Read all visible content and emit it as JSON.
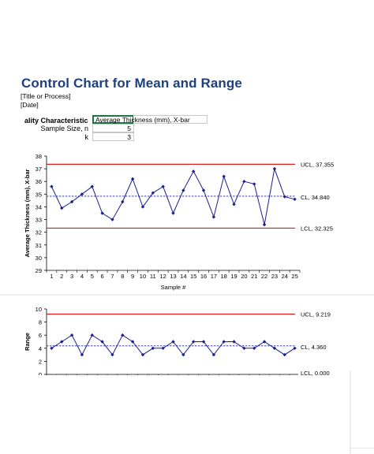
{
  "header": {
    "title": "Control Chart for Mean and Range",
    "line1": "[Title or Process]",
    "line2": "[Date]"
  },
  "form": {
    "quality_label": "ality Characteristic",
    "quality_value": "Average Thickness (mm), X-bar",
    "sample_size_label": "Sample Size, n",
    "sample_size_value": "5",
    "k_label": "k",
    "k_value": "3"
  },
  "colors": {
    "series": "#1a1f8c",
    "control_limit": "#e01b1b",
    "center_line": "#1a1fcc"
  },
  "chart_data": [
    {
      "type": "line",
      "ylabel": "Average Thickness (mm), X-bar",
      "xlabel": "Sample #",
      "ylim": [
        29,
        38
      ],
      "yticks": [
        29,
        30,
        31,
        32,
        33,
        34,
        35,
        36,
        37,
        38
      ],
      "x": [
        1,
        2,
        3,
        4,
        5,
        6,
        7,
        8,
        9,
        10,
        11,
        12,
        13,
        14,
        15,
        16,
        17,
        18,
        19,
        20,
        21,
        22,
        23,
        24,
        25
      ],
      "values": [
        35.6,
        33.9,
        34.4,
        35.0,
        35.6,
        33.5,
        33.0,
        34.4,
        36.2,
        34.0,
        35.1,
        35.6,
        33.5,
        35.3,
        36.8,
        35.3,
        33.2,
        36.4,
        34.2,
        36.0,
        35.8,
        32.6,
        37.0,
        34.8,
        34.6
      ],
      "ucl": 37.355,
      "cl": 34.84,
      "lcl": 32.325,
      "ucl_label": "UCL, 37.355",
      "cl_label": "CL, 34.840",
      "lcl_label": "LCL, 32.325",
      "grid": false
    },
    {
      "type": "line",
      "ylabel": "Range",
      "ylim": [
        0,
        10
      ],
      "yticks": [
        0,
        2,
        4,
        6,
        8,
        10
      ],
      "x": [
        1,
        2,
        3,
        4,
        5,
        6,
        7,
        8,
        9,
        10,
        11,
        12,
        13,
        14,
        15,
        16,
        17,
        18,
        19,
        20,
        21,
        22,
        23,
        24,
        25
      ],
      "values": [
        4,
        5,
        6,
        3,
        6,
        5,
        3,
        6,
        5,
        3,
        4,
        4,
        5,
        3,
        5,
        5,
        3,
        5,
        5,
        4,
        4,
        5,
        4,
        3,
        4
      ],
      "ucl": 9.219,
      "cl": 4.36,
      "lcl": 0,
      "ucl_label": "UCL, 9.219",
      "cl_label": "CL, 4.360",
      "lcl_label": "LCL, 0.000",
      "grid": false
    }
  ]
}
